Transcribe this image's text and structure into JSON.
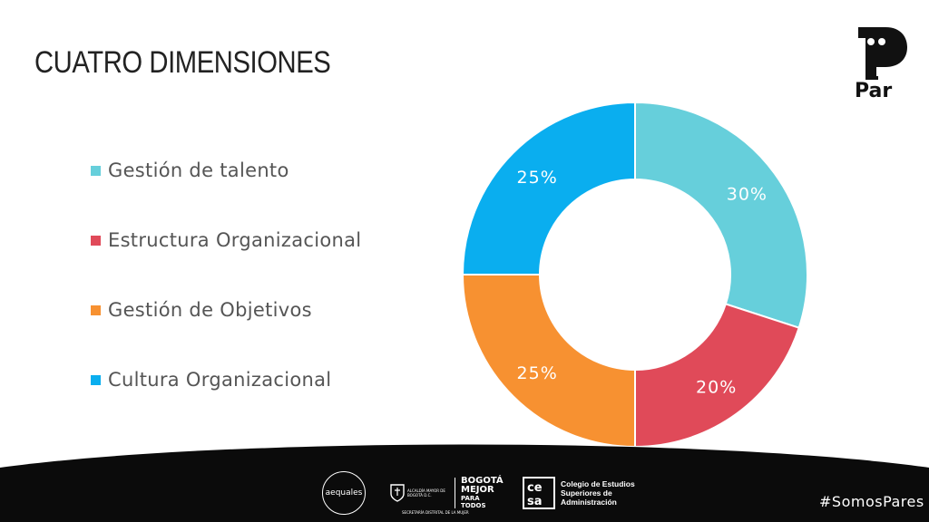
{
  "slide": {
    "title": "CUATRO DIMENSIONES"
  },
  "chart_data": {
    "type": "pie",
    "donut": true,
    "categories": [
      "Gestión de talento",
      "Estructura Organizacional",
      "Gestión de Objetivos",
      "Cultura Organizacional"
    ],
    "values": [
      30,
      20,
      25,
      25
    ],
    "data_labels": [
      "30%",
      "20%",
      "25%",
      "25%"
    ],
    "colors": [
      "#66CFDB",
      "#E04A59",
      "#F79131",
      "#0AAEEF"
    ],
    "legend_placement": "left"
  },
  "brand": {
    "logo_text": "Par",
    "hashtag": "#SomosPares",
    "partners": {
      "aequales": "aequales",
      "alcaldia": "ALCALDÍA MAYOR DE BOGOTÁ D.C.",
      "secretaria": "SECRETARÍA DISTRITAL DE LA MUJER",
      "bogota_line1": "BOGOTÁ",
      "bogota_line2": "MEJOR",
      "bogota_line3": "PARA TODOS",
      "cesa_line1": "Colegio de Estudios",
      "cesa_line2": "Superiores de Administración"
    }
  }
}
